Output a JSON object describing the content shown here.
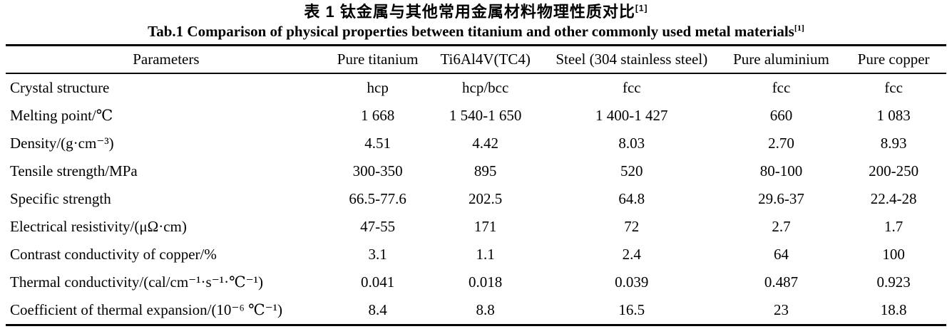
{
  "caption": {
    "title_zh": "表 1  钛金属与其他常用金属材料物理性质对比",
    "title_en": "Tab.1 Comparison of physical properties between titanium and other commonly used metal materials",
    "ref_mark": "[1]"
  },
  "table": {
    "headers": [
      "Parameters",
      "Pure titanium",
      "Ti6Al4V(TC4)",
      "Steel (304 stainless steel)",
      "Pure aluminium",
      "Pure copper"
    ],
    "rows": [
      {
        "label": "Crystal structure",
        "values": [
          "hcp",
          "hcp/bcc",
          "fcc",
          "fcc",
          "fcc"
        ]
      },
      {
        "label": "Melting point/℃",
        "values": [
          "1 668",
          "1 540-1 650",
          "1 400-1 427",
          "660",
          "1 083"
        ]
      },
      {
        "label": "Density/(g·cm⁻³)",
        "values": [
          "4.51",
          "4.42",
          "8.03",
          "2.70",
          "8.93"
        ]
      },
      {
        "label": "Tensile strength/MPa",
        "values": [
          "300-350",
          "895",
          "520",
          "80-100",
          "200-250"
        ]
      },
      {
        "label": "Specific strength",
        "values": [
          "66.5-77.6",
          "202.5",
          "64.8",
          "29.6-37",
          "22.4-28"
        ]
      },
      {
        "label": "Electrical resistivity/(μΩ·cm)",
        "values": [
          "47-55",
          "171",
          "72",
          "2.7",
          "1.7"
        ]
      },
      {
        "label": "Contrast conductivity of copper/%",
        "values": [
          "3.1",
          "1.1",
          "2.4",
          "64",
          "100"
        ]
      },
      {
        "label": "Thermal conductivity/(cal/cm⁻¹·s⁻¹·℃⁻¹)",
        "values": [
          "0.041",
          "0.018",
          "0.039",
          "0.487",
          "0.923"
        ]
      },
      {
        "label": "Coefficient of thermal expansion/(10⁻⁶ ℃⁻¹)",
        "values": [
          "8.4",
          "8.8",
          "16.5",
          "23",
          "18.8"
        ]
      }
    ]
  }
}
